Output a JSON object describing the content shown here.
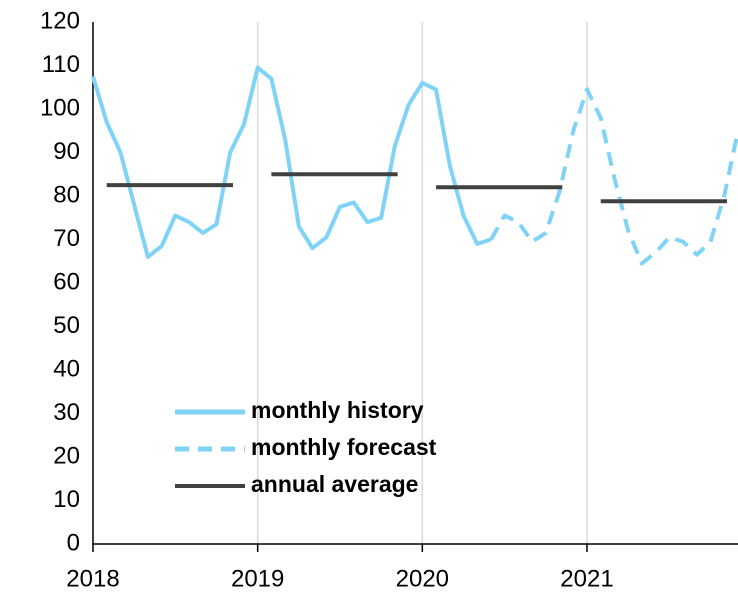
{
  "chart_data": {
    "type": "line",
    "xlim": [
      2018,
      2021.917
    ],
    "xticks": [
      2018,
      2019,
      2020,
      2021
    ],
    "ylim": [
      0,
      120
    ],
    "yticks": [
      0,
      10,
      20,
      30,
      40,
      50,
      60,
      70,
      80,
      90,
      100,
      110,
      120
    ],
    "grid": true,
    "legend": "lower-left",
    "series": [
      {
        "name": "monthly history",
        "color": "#7fd3f7",
        "style": "solid",
        "x": [
          2018,
          2018.083,
          2018.167,
          2018.25,
          2018.333,
          2018.417,
          2018.5,
          2018.583,
          2018.667,
          2018.75,
          2018.833,
          2018.917,
          2019,
          2019.083,
          2019.167,
          2019.25,
          2019.333,
          2019.417,
          2019.5,
          2019.583,
          2019.667,
          2019.75,
          2019.833,
          2019.917,
          2020,
          2020.083,
          2020.167,
          2020.25,
          2020.333,
          2020.417
        ],
        "values": [
          107.5,
          97,
          90,
          78,
          66,
          68.5,
          75.5,
          74,
          71.5,
          73.5,
          90,
          96.5,
          109.5,
          107,
          93,
          73,
          68,
          70.5,
          77.5,
          78.5,
          74,
          75,
          91.5,
          101,
          106,
          104.5,
          87,
          75.5,
          69,
          70
        ]
      },
      {
        "name": "monthly forecast",
        "color": "#7fd3f7",
        "style": "dashed",
        "x": [
          2020.417,
          2020.5,
          2020.583,
          2020.667,
          2020.75,
          2020.833,
          2020.917,
          2021,
          2021.083,
          2021.167,
          2021.25,
          2021.333,
          2021.417,
          2021.5,
          2021.583,
          2021.667,
          2021.75,
          2021.833,
          2021.917
        ],
        "values": [
          70,
          75.5,
          74,
          69.5,
          71.5,
          81,
          95,
          104.5,
          98,
          84,
          72,
          64.5,
          67,
          70.5,
          69.5,
          66.5,
          69.5,
          80,
          95
        ]
      },
      {
        "name": "annual average",
        "color": "#404040",
        "style": "annual",
        "x": [
          2018,
          2019,
          2020,
          2021
        ],
        "values": [
          82.5,
          85,
          82,
          78.8
        ]
      }
    ]
  }
}
